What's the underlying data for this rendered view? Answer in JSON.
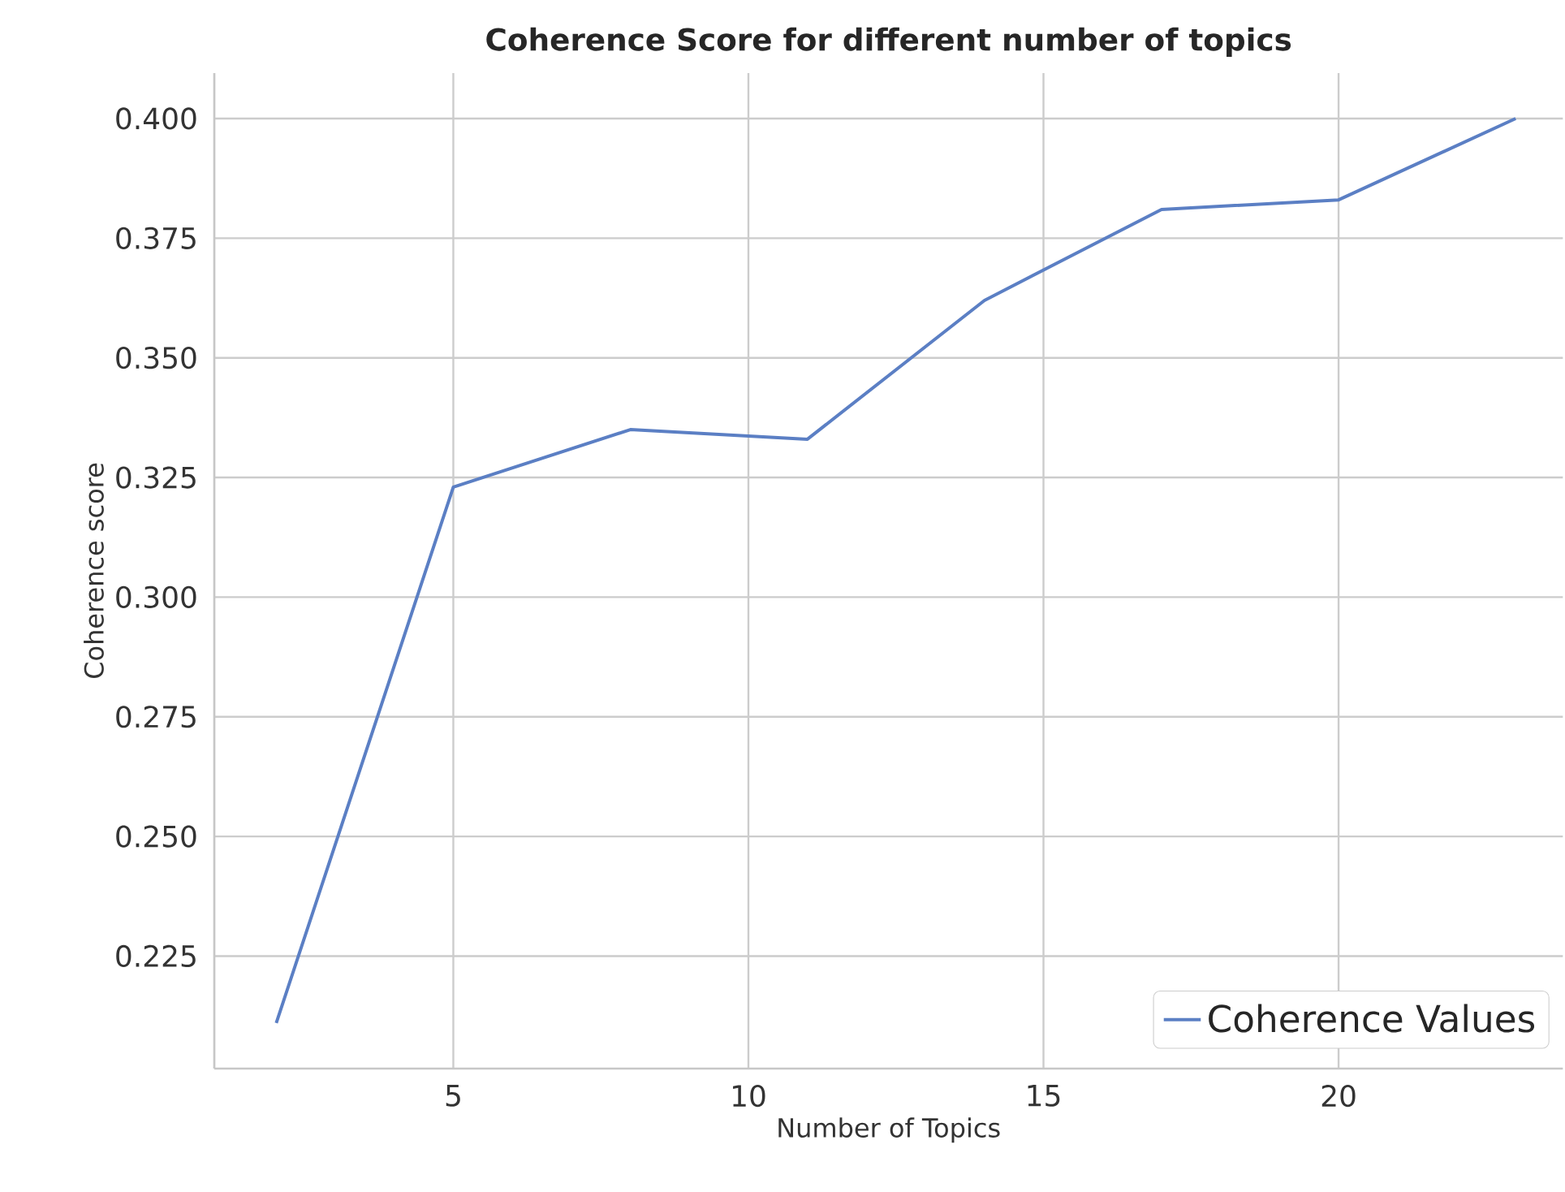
{
  "chart_data": {
    "type": "line",
    "title": "Coherence Score for different number of topics",
    "xlabel": "Number of Topics",
    "ylabel": "Coherence score",
    "x": [
      2,
      5,
      8,
      11,
      14,
      17,
      20,
      23
    ],
    "series": [
      {
        "name": "Coherence Values",
        "color": "#5b7fc4",
        "values": [
          0.211,
          0.323,
          0.335,
          0.333,
          0.362,
          0.381,
          0.383,
          0.4
        ]
      }
    ],
    "xlim": [
      0.95,
      23.8
    ],
    "ylim": [
      0.2015,
      0.4095
    ],
    "xticks": [
      5,
      10,
      15,
      20
    ],
    "yticks": [
      {
        "value": 0.225,
        "label": "0.225"
      },
      {
        "value": 0.25,
        "label": "0.250"
      },
      {
        "value": 0.275,
        "label": "0.275"
      },
      {
        "value": 0.3,
        "label": "0.300"
      },
      {
        "value": 0.325,
        "label": "0.325"
      },
      {
        "value": 0.35,
        "label": "0.350"
      },
      {
        "value": 0.375,
        "label": "0.375"
      },
      {
        "value": 0.4,
        "label": "0.400"
      }
    ],
    "grid": true,
    "legend": "bottom right",
    "marker": "none",
    "line_style": "solid"
  }
}
